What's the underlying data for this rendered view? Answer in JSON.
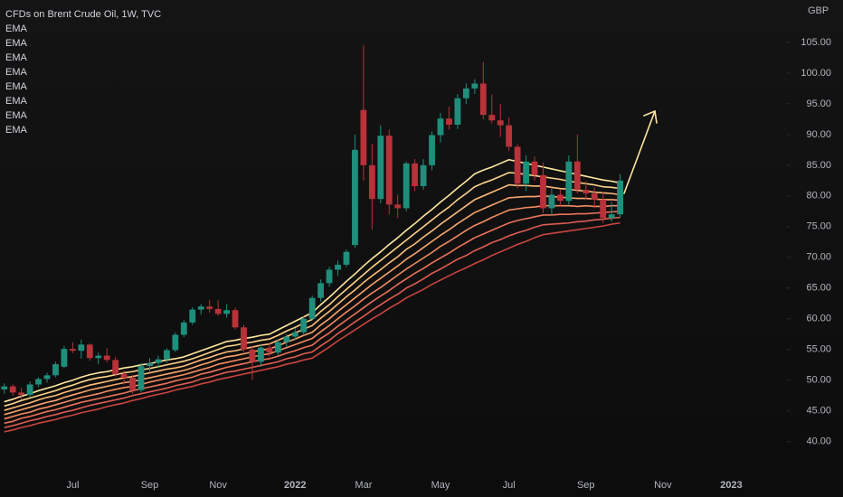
{
  "chart_data": {
    "type": "candlestick",
    "title": "CFDs on Brent Crude Oil, 1W, TVC",
    "currency": "GBP",
    "up_color": "#1f8f7c",
    "down_color": "#b8323a",
    "categories": [
      null,
      null,
      null,
      null,
      null,
      null,
      null,
      null,
      "Jul",
      null,
      null,
      null,
      null,
      null,
      null,
      null,
      null,
      "Sep",
      null,
      null,
      null,
      null,
      null,
      null,
      null,
      "Nov",
      null,
      null,
      null,
      null,
      null,
      null,
      null,
      null,
      "2022",
      null,
      null,
      null,
      null,
      null,
      null,
      null,
      "Mar",
      null,
      null,
      null,
      null,
      null,
      null,
      null,
      null,
      "May",
      null,
      null,
      null,
      null,
      null,
      null,
      null,
      "Jul",
      null,
      null,
      null,
      null,
      null,
      null,
      null,
      null,
      "Sep",
      null,
      null,
      null,
      null,
      null,
      null,
      null,
      null,
      "Nov",
      null,
      null,
      null,
      null,
      null,
      null,
      null,
      "2023",
      null,
      null,
      null,
      null,
      null,
      null
    ],
    "open": [
      48.5,
      49.0,
      48.0,
      47.6,
      49.3,
      50.2,
      50.8,
      52.2,
      55.1,
      54.8,
      55.8,
      53.6,
      54.0,
      53.3,
      51.0,
      50.4,
      48.4,
      52.3,
      52.8,
      53.4,
      54.9,
      57.4,
      59.4,
      61.5,
      62.0,
      61.6,
      60.8,
      61.4,
      58.6,
      55.0,
      53.0,
      55.3,
      54.5,
      56.2,
      57.1,
      57.8,
      60.0,
      63.4,
      65.8,
      68.0,
      68.8,
      72.0,
      94.0,
      85.0,
      79.5,
      89.8,
      78.6,
      78.0,
      85.3,
      81.6,
      85.0,
      89.9,
      92.6,
      91.6,
      95.9,
      97.5,
      98.3,
      93.2,
      92.3,
      91.5,
      88.0,
      82.0,
      85.6,
      83.4,
      78.0,
      80.2,
      79.2,
      85.6,
      81.0,
      80.4,
      79.4,
      76.4,
      77.0,
      null,
      null,
      null,
      null,
      null,
      null,
      null,
      null,
      null,
      null,
      null,
      null,
      null,
      null,
      null,
      null,
      null,
      null,
      null
    ],
    "high": [
      49.5,
      49.3,
      48.8,
      49.8,
      50.5,
      51.2,
      53.0,
      55.6,
      56.2,
      56.6,
      56.0,
      54.5,
      55.2,
      53.8,
      51.6,
      50.9,
      52.8,
      53.6,
      54.0,
      55.2,
      57.8,
      59.8,
      61.9,
      62.4,
      63.1,
      63.0,
      62.4,
      61.8,
      59.0,
      55.6,
      55.8,
      56.0,
      56.6,
      57.5,
      58.5,
      60.4,
      63.8,
      66.4,
      68.5,
      69.5,
      71.3,
      90.0,
      104.6,
      88.5,
      91.5,
      90.8,
      80.2,
      85.6,
      86.0,
      86.0,
      90.5,
      93.5,
      94.5,
      96.6,
      98.3,
      99.0,
      101.8,
      96.5,
      95.0,
      92.8,
      88.4,
      86.6,
      86.4,
      85.4,
      81.4,
      81.0,
      86.6,
      90.0,
      82.4,
      81.4,
      80.6,
      79.0,
      83.6,
      null,
      null,
      null,
      null,
      null,
      null,
      null,
      null,
      null,
      null,
      null,
      null,
      null,
      null,
      null,
      null,
      null,
      null,
      null
    ],
    "low": [
      47.8,
      47.5,
      46.8,
      47.2,
      48.9,
      49.6,
      50.5,
      52.0,
      54.4,
      53.5,
      53.2,
      52.6,
      52.9,
      50.6,
      49.3,
      47.8,
      48.0,
      51.4,
      52.0,
      52.8,
      54.6,
      57.0,
      59.0,
      60.7,
      61.0,
      60.5,
      60.2,
      58.3,
      54.6,
      50.0,
      52.2,
      53.8,
      54.0,
      55.4,
      56.5,
      57.3,
      59.8,
      62.8,
      65.2,
      67.0,
      68.4,
      71.5,
      82.5,
      74.5,
      78.8,
      77.0,
      76.4,
      77.5,
      80.8,
      81.0,
      84.2,
      88.7,
      90.8,
      90.9,
      95.0,
      96.6,
      92.5,
      91.8,
      89.6,
      87.3,
      81.2,
      80.8,
      82.5,
      77.2,
      76.8,
      78.2,
      78.6,
      80.4,
      79.3,
      78.0,
      75.6,
      75.8,
      76.5,
      null,
      null,
      null,
      null,
      null,
      null,
      null,
      null,
      null,
      null,
      null,
      null,
      null,
      null,
      null,
      null,
      null,
      null,
      null
    ],
    "close": [
      49.0,
      48.0,
      47.6,
      49.3,
      50.2,
      50.8,
      52.6,
      55.1,
      54.8,
      55.8,
      53.6,
      54.0,
      53.3,
      51.0,
      50.4,
      48.4,
      52.3,
      52.8,
      53.4,
      54.9,
      57.4,
      59.4,
      61.5,
      62.0,
      61.6,
      60.8,
      61.4,
      58.6,
      55.0,
      53.0,
      55.3,
      54.5,
      56.2,
      57.1,
      57.8,
      60.0,
      63.4,
      65.8,
      68.0,
      68.8,
      70.9,
      87.5,
      85.0,
      79.5,
      89.8,
      78.6,
      78.0,
      85.3,
      81.6,
      85.0,
      89.9,
      92.6,
      91.6,
      95.9,
      97.5,
      98.3,
      93.2,
      92.3,
      91.5,
      88.0,
      82.0,
      85.6,
      83.4,
      78.0,
      80.2,
      79.2,
      85.6,
      81.0,
      80.4,
      79.4,
      76.4,
      77.0,
      82.5,
      null,
      null,
      null,
      null,
      null,
      null,
      null,
      null,
      null,
      null,
      null,
      null,
      null,
      null,
      null,
      null,
      null,
      null,
      null
    ],
    "series": [
      {
        "name": "EMA",
        "color": "#ffe7a0",
        "values": [
          46.5,
          46.9,
          47.4,
          47.8,
          48.3,
          48.7,
          49.1,
          49.6,
          50.0,
          50.5,
          50.9,
          51.2,
          51.4,
          51.7,
          52.0,
          52.2,
          52.5,
          52.7,
          53.0,
          53.3,
          53.5,
          53.8,
          54.3,
          54.8,
          55.3,
          55.8,
          56.3,
          56.5,
          56.8,
          57.0,
          57.3,
          57.5,
          58.2,
          58.9,
          59.6,
          60.3,
          61.0,
          62.3,
          63.5,
          64.8,
          66.1,
          67.3,
          68.6,
          69.8,
          70.9,
          72.1,
          73.2,
          74.4,
          75.5,
          76.7,
          77.8,
          79.0,
          80.1,
          81.3,
          82.4,
          83.6,
          84.2,
          84.7,
          85.3,
          85.9,
          85.6,
          85.3,
          85.0,
          84.7,
          84.4,
          84.1,
          83.8,
          83.5,
          83.2,
          82.9,
          82.6,
          82.4,
          82.1,
          null,
          null,
          null,
          null,
          null,
          null,
          null,
          null,
          null,
          null,
          null,
          null,
          null,
          null,
          null,
          null,
          null,
          null,
          null
        ]
      },
      {
        "name": "EMA",
        "color": "#fdd38a",
        "values": [
          45.8,
          46.2,
          46.7,
          47.1,
          47.5,
          47.9,
          48.3,
          48.8,
          49.2,
          49.7,
          50.1,
          50.4,
          50.6,
          50.9,
          51.2,
          51.4,
          51.7,
          51.9,
          52.2,
          52.5,
          52.8,
          53.1,
          53.5,
          54.0,
          54.5,
          55.0,
          55.5,
          55.7,
          56.0,
          56.2,
          56.5,
          56.7,
          57.3,
          58.0,
          58.6,
          59.3,
          59.9,
          61.2,
          62.3,
          63.6,
          64.8,
          66.0,
          67.2,
          68.4,
          69.5,
          70.6,
          71.7,
          72.8,
          73.9,
          75.0,
          76.1,
          77.2,
          78.2,
          79.4,
          80.4,
          81.5,
          82.1,
          82.6,
          83.2,
          83.8,
          83.7,
          83.5,
          83.3,
          83.1,
          82.9,
          82.7,
          82.4,
          82.2,
          82.0,
          81.8,
          81.5,
          81.4,
          81.2,
          null,
          null,
          null,
          null,
          null,
          null,
          null,
          null,
          null,
          null,
          null,
          null,
          null,
          null,
          null,
          null,
          null,
          null,
          null
        ]
      },
      {
        "name": "EMA",
        "color": "#fbbd79",
        "values": [
          45.1,
          45.5,
          45.9,
          46.3,
          46.8,
          47.2,
          47.5,
          48.0,
          48.4,
          48.8,
          49.2,
          49.5,
          49.8,
          50.1,
          50.4,
          50.6,
          50.9,
          51.2,
          51.5,
          51.8,
          52.0,
          52.3,
          52.8,
          53.3,
          53.7,
          54.2,
          54.6,
          54.8,
          55.1,
          55.4,
          55.7,
          55.9,
          56.5,
          57.1,
          57.7,
          58.3,
          58.9,
          60.1,
          61.2,
          62.4,
          63.6,
          64.7,
          65.9,
          67.0,
          68.0,
          69.1,
          70.1,
          71.3,
          72.2,
          73.3,
          74.3,
          75.4,
          76.4,
          77.4,
          78.4,
          79.4,
          80.0,
          80.6,
          81.2,
          81.8,
          81.7,
          81.7,
          81.6,
          81.6,
          81.4,
          81.2,
          81.1,
          80.9,
          80.8,
          80.6,
          80.5,
          80.4,
          80.2,
          null,
          null,
          null,
          null,
          null,
          null,
          null,
          null,
          null,
          null,
          null,
          null,
          null,
          null,
          null,
          null,
          null,
          null,
          null
        ]
      },
      {
        "name": "EMA",
        "color": "#f8a56c",
        "values": [
          44.4,
          44.8,
          45.2,
          45.6,
          46.0,
          46.4,
          46.7,
          47.2,
          47.6,
          48.0,
          48.4,
          48.7,
          49.0,
          49.3,
          49.6,
          49.8,
          50.1,
          50.4,
          50.7,
          51.0,
          51.3,
          51.6,
          52.0,
          52.5,
          52.9,
          53.4,
          53.8,
          54.0,
          54.3,
          54.6,
          54.9,
          55.1,
          55.6,
          56.2,
          56.7,
          57.3,
          57.8,
          59.0,
          60.0,
          61.2,
          62.3,
          63.4,
          64.5,
          65.6,
          66.6,
          67.6,
          68.6,
          69.7,
          70.6,
          71.6,
          72.6,
          73.6,
          74.5,
          75.5,
          76.4,
          77.3,
          77.9,
          78.5,
          79.1,
          79.7,
          79.8,
          79.9,
          79.9,
          80.0,
          79.9,
          79.8,
          79.7,
          79.6,
          79.6,
          79.5,
          79.4,
          79.4,
          79.3,
          null,
          null,
          null,
          null,
          null,
          null,
          null,
          null,
          null,
          null,
          null,
          null,
          null,
          null,
          null,
          null,
          null,
          null,
          null
        ]
      },
      {
        "name": "EMA",
        "color": "#f38c62",
        "values": [
          43.7,
          44.1,
          44.5,
          44.8,
          45.3,
          45.6,
          46.0,
          46.4,
          46.8,
          47.2,
          47.5,
          47.8,
          48.2,
          48.5,
          48.8,
          49.0,
          49.3,
          49.7,
          50.0,
          50.3,
          50.6,
          50.9,
          51.3,
          51.7,
          52.1,
          52.6,
          52.9,
          53.2,
          53.5,
          53.8,
          54.1,
          54.3,
          54.8,
          55.3,
          55.8,
          56.3,
          56.8,
          57.9,
          58.9,
          60.0,
          61.1,
          62.1,
          63.2,
          64.2,
          65.1,
          66.1,
          67.1,
          68.1,
          69.0,
          69.9,
          70.8,
          71.8,
          72.6,
          73.5,
          74.4,
          75.2,
          75.8,
          76.5,
          77.1,
          77.7,
          77.9,
          78.1,
          78.2,
          78.4,
          78.4,
          78.4,
          78.4,
          78.3,
          78.4,
          78.3,
          78.3,
          78.4,
          78.4,
          null,
          null,
          null,
          null,
          null,
          null,
          null,
          null,
          null,
          null,
          null,
          null,
          null,
          null,
          null,
          null,
          null,
          null,
          null
        ]
      },
      {
        "name": "EMA",
        "color": "#ec735a",
        "values": [
          43.0,
          43.3,
          43.8,
          44.1,
          44.5,
          44.9,
          45.2,
          45.6,
          46.0,
          46.4,
          46.7,
          47.0,
          47.3,
          47.6,
          47.9,
          48.3,
          48.6,
          48.9,
          49.2,
          49.5,
          49.9,
          50.2,
          50.5,
          51.0,
          51.3,
          51.7,
          52.1,
          52.4,
          52.7,
          53.0,
          53.3,
          53.5,
          53.9,
          54.4,
          54.8,
          55.3,
          55.7,
          56.8,
          57.7,
          58.8,
          59.8,
          60.8,
          61.8,
          62.8,
          63.7,
          64.6,
          65.6,
          66.5,
          67.4,
          68.2,
          69.1,
          69.9,
          70.7,
          71.6,
          72.4,
          73.2,
          73.8,
          74.4,
          75.0,
          75.6,
          76.0,
          76.3,
          76.6,
          76.9,
          76.9,
          77.0,
          77.0,
          77.1,
          77.1,
          77.2,
          77.3,
          77.4,
          77.5,
          null,
          null,
          null,
          null,
          null,
          null,
          null,
          null,
          null,
          null,
          null,
          null,
          null,
          null,
          null,
          null,
          null,
          null,
          null
        ]
      },
      {
        "name": "EMA",
        "color": "#df5c52",
        "values": [
          42.3,
          42.6,
          43.0,
          43.4,
          43.7,
          44.1,
          44.4,
          44.8,
          45.1,
          45.5,
          45.9,
          46.2,
          46.5,
          46.8,
          47.1,
          47.5,
          47.8,
          48.1,
          48.4,
          48.7,
          49.1,
          49.4,
          49.7,
          50.2,
          50.5,
          50.9,
          51.3,
          51.5,
          51.8,
          52.1,
          52.4,
          52.7,
          53.0,
          53.5,
          53.8,
          54.3,
          54.6,
          55.6,
          56.5,
          57.6,
          58.5,
          59.5,
          60.4,
          61.4,
          62.3,
          63.2,
          64.0,
          65.0,
          65.7,
          66.5,
          67.4,
          68.1,
          68.9,
          69.7,
          70.3,
          71.1,
          71.7,
          72.4,
          72.9,
          73.5,
          74.0,
          74.4,
          74.9,
          75.3,
          75.4,
          75.5,
          75.6,
          75.8,
          75.9,
          76.1,
          76.2,
          76.4,
          76.5,
          null,
          null,
          null,
          null,
          null,
          null,
          null,
          null,
          null,
          null,
          null,
          null,
          null,
          null,
          null,
          null,
          null,
          null,
          null
        ]
      },
      {
        "name": "EMA",
        "color": "#c9453f",
        "values": [
          41.6,
          41.9,
          42.3,
          42.6,
          43.0,
          43.3,
          43.6,
          44.0,
          44.3,
          44.7,
          45.0,
          45.3,
          45.7,
          46.0,
          46.3,
          46.7,
          47.0,
          47.4,
          47.7,
          48.0,
          48.4,
          48.7,
          49.0,
          49.4,
          49.7,
          50.1,
          50.4,
          50.7,
          51.0,
          51.3,
          51.6,
          51.9,
          52.2,
          52.6,
          52.9,
          53.3,
          53.6,
          54.5,
          55.4,
          56.4,
          57.3,
          58.2,
          59.1,
          60.0,
          60.8,
          61.7,
          62.5,
          63.4,
          64.1,
          64.8,
          65.6,
          66.3,
          67.0,
          67.7,
          68.3,
          69.0,
          69.6,
          70.3,
          70.9,
          71.5,
          72.1,
          72.6,
          73.2,
          73.7,
          73.9,
          74.1,
          74.3,
          74.5,
          74.7,
          74.9,
          75.1,
          75.4,
          75.6,
          null,
          null,
          null,
          null,
          null,
          null,
          null,
          null,
          null,
          null,
          null,
          null,
          null,
          null,
          null,
          null,
          null,
          null,
          null
        ]
      }
    ],
    "ylim": [
      35.4,
      111.9
    ],
    "yticks": [
      {
        "value": 40,
        "label": "40.00"
      },
      {
        "value": 45,
        "label": "45.00"
      },
      {
        "value": 50,
        "label": "50.00"
      },
      {
        "value": 55,
        "label": "55.00"
      },
      {
        "value": 60,
        "label": "60.00"
      },
      {
        "value": 65,
        "label": "65.00"
      },
      {
        "value": 70,
        "label": "70.00"
      },
      {
        "value": 75,
        "label": "75.00"
      },
      {
        "value": 80,
        "label": "80.00"
      },
      {
        "value": 85,
        "label": "85.00"
      },
      {
        "value": 90,
        "label": "90.00"
      },
      {
        "value": 95,
        "label": "95.00"
      },
      {
        "value": 100,
        "label": "100.00"
      },
      {
        "value": 105,
        "label": "105.00"
      }
    ],
    "grid": false
  }
}
